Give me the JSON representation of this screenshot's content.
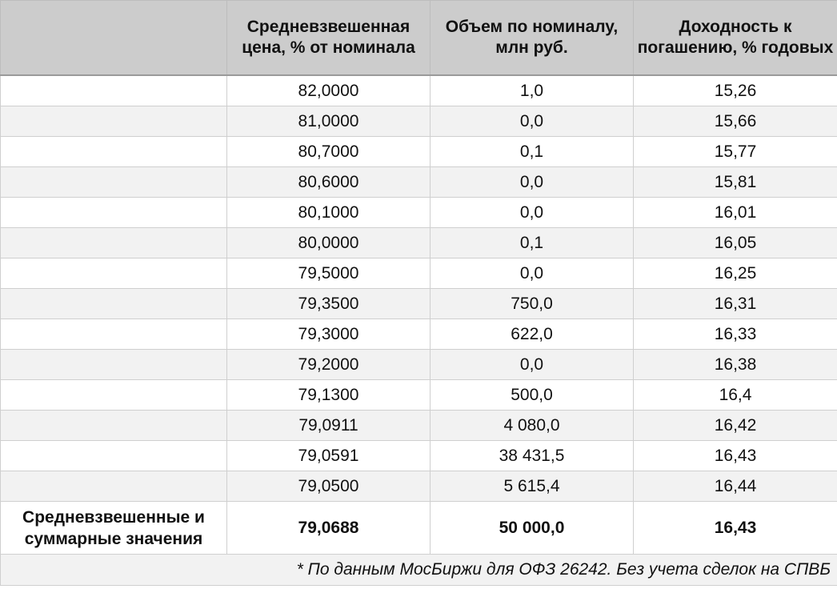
{
  "table": {
    "headers": [
      "",
      "Средневзвешенная цена, % от номинала",
      "Объем по номиналу, млн руб.",
      "Доходность к погашению, % годовых"
    ],
    "rows": [
      {
        "price": "82,0000",
        "volume": "1,0",
        "yield": "15,26"
      },
      {
        "price": "81,0000",
        "volume": "0,0",
        "yield": "15,66"
      },
      {
        "price": "80,7000",
        "volume": "0,1",
        "yield": "15,77"
      },
      {
        "price": "80,6000",
        "volume": "0,0",
        "yield": "15,81"
      },
      {
        "price": "80,1000",
        "volume": "0,0",
        "yield": "16,01"
      },
      {
        "price": "80,0000",
        "volume": "0,1",
        "yield": "16,05"
      },
      {
        "price": "79,5000",
        "volume": "0,0",
        "yield": "16,25"
      },
      {
        "price": "79,3500",
        "volume": "750,0",
        "yield": "16,31"
      },
      {
        "price": "79,3000",
        "volume": "622,0",
        "yield": "16,33"
      },
      {
        "price": "79,2000",
        "volume": "0,0",
        "yield": "16,38"
      },
      {
        "price": "79,1300",
        "volume": "500,0",
        "yield": "16,4"
      },
      {
        "price": "79,0911",
        "volume": "4 080,0",
        "yield": "16,42"
      },
      {
        "price": "79,0591",
        "volume": "38 431,5",
        "yield": "16,43"
      },
      {
        "price": "79,0500",
        "volume": "5 615,4",
        "yield": "16,44"
      }
    ],
    "total": {
      "label": "Средневзвешенные и суммарные значения",
      "price": "79,0688",
      "volume": "50 000,0",
      "yield": "16,43"
    },
    "footnote": "* По данным МосБиржи для ОФЗ 26242. Без учета сделок на СПВБ"
  }
}
